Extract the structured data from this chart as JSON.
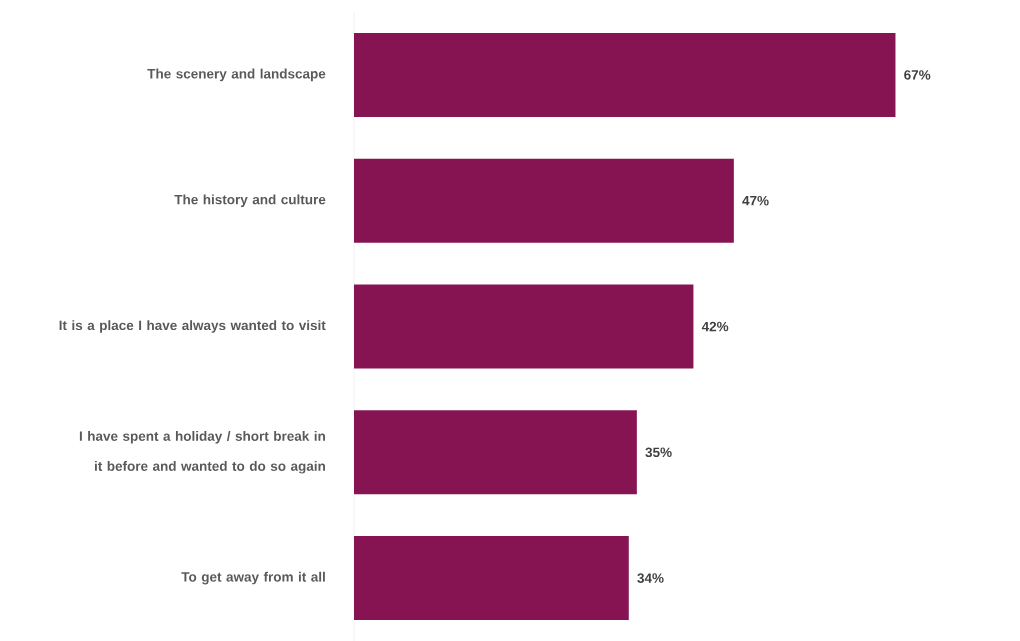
{
  "chart_data": {
    "type": "bar",
    "orientation": "horizontal",
    "color": "#861453",
    "categories": [
      "The scenery and landscape",
      "The history and culture",
      "It is a place I have always wanted to visit",
      "I have spent a holiday / short break in it before and wanted to do so again",
      "To get away from it all"
    ],
    "values": [
      67,
      47,
      42,
      35,
      34
    ],
    "value_labels": [
      "67%",
      "47%",
      "42%",
      "35%",
      "34%"
    ]
  }
}
